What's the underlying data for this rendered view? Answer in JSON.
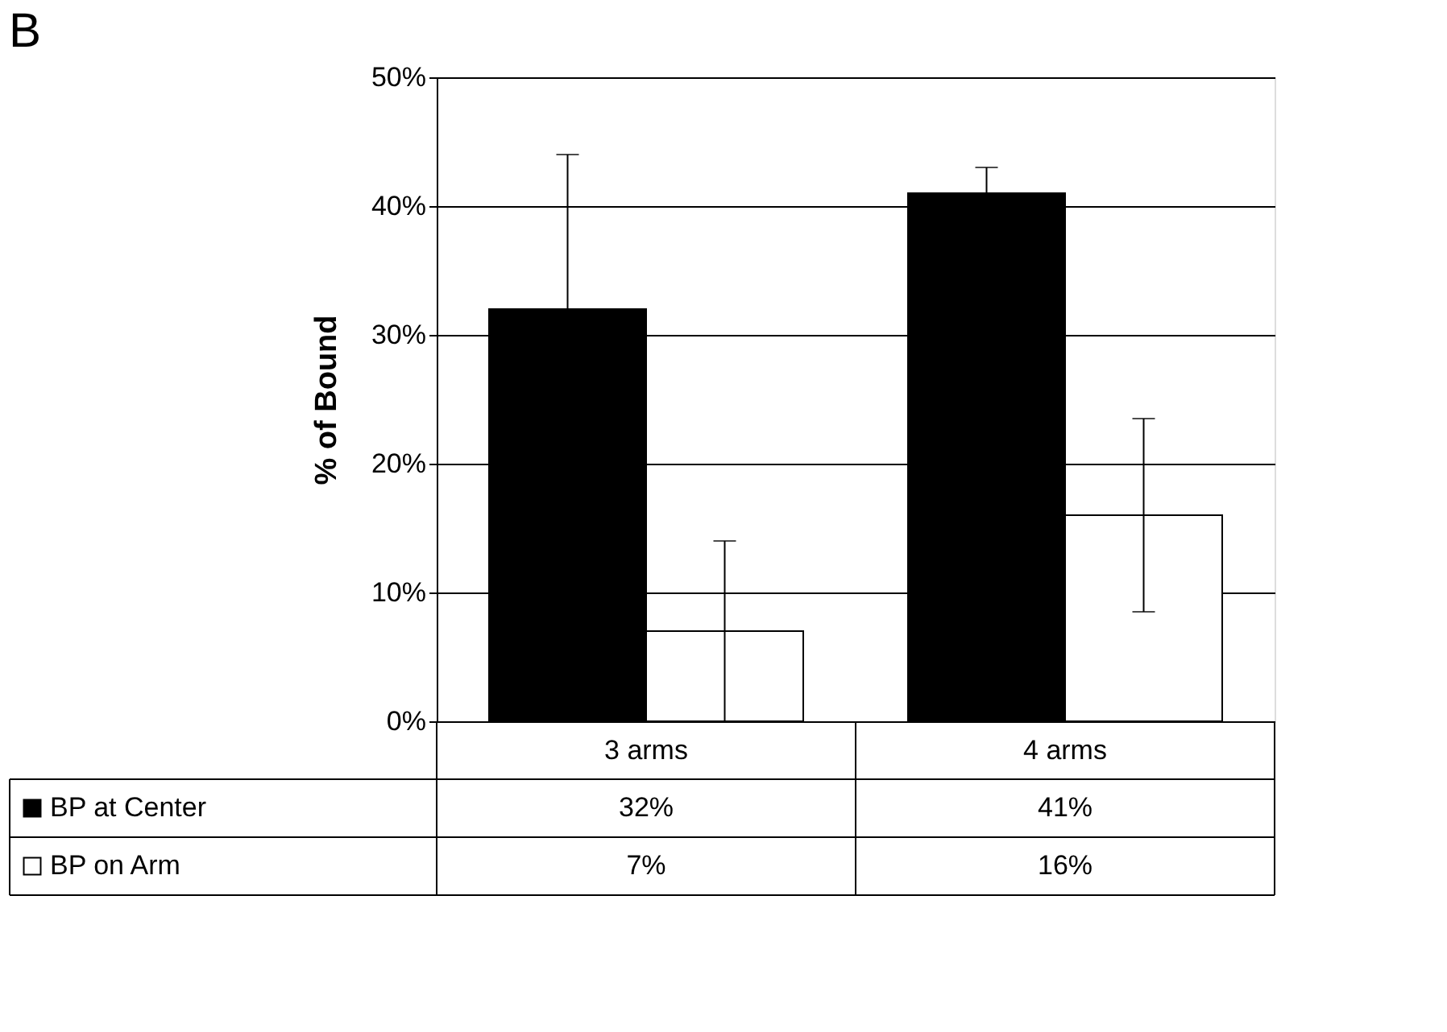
{
  "chart_data": {
    "type": "bar",
    "title": "B",
    "ylabel": "% of Bound",
    "categories": [
      "3 arms",
      "4 arms"
    ],
    "series": [
      {
        "name": "BP at Center",
        "color": "#000000",
        "values": [
          32,
          41
        ],
        "errors": [
          12,
          2
        ],
        "value_labels": [
          "32%",
          "41%"
        ]
      },
      {
        "name": "BP on Arm",
        "color": "#ffffff",
        "values": [
          7,
          16
        ],
        "errors": [
          7,
          7.5
        ],
        "value_labels": [
          "7%",
          "16%"
        ]
      }
    ],
    "ylim": [
      0,
      50
    ],
    "yticks": [
      {
        "value": 0,
        "label": "0%"
      },
      {
        "value": 10,
        "label": "10%"
      },
      {
        "value": 20,
        "label": "20%"
      },
      {
        "value": 30,
        "label": "30%"
      },
      {
        "value": 40,
        "label": "40%"
      },
      {
        "value": 50,
        "label": "50%"
      }
    ],
    "grid": "y",
    "legend": "bottom"
  }
}
